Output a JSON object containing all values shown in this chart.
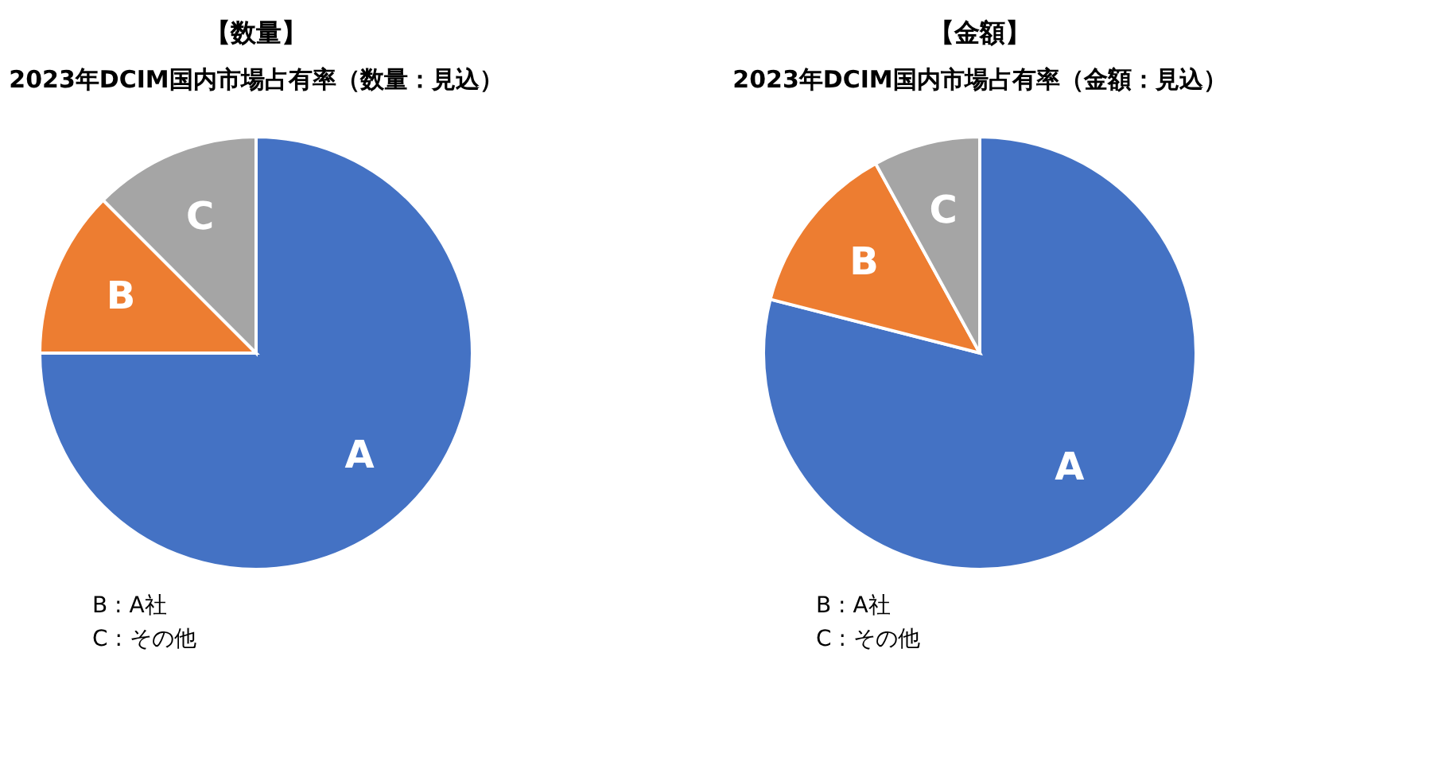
{
  "chart_data": [
    {
      "type": "pie",
      "title": "【数量】",
      "subtitle": "2023年DCIM国内市場占有率（数量：見込）",
      "categories": [
        "A",
        "B",
        "C"
      ],
      "values": [
        75,
        12.5,
        12.5
      ],
      "colors": [
        "#4472c4",
        "#ed7d31",
        "#a5a5a5"
      ],
      "annotations": [
        "B : A社",
        "C : その他"
      ]
    },
    {
      "type": "pie",
      "title": "【金額】",
      "subtitle": "2023年DCIM国内市場占有率（金額：見込）",
      "categories": [
        "A",
        "B",
        "C"
      ],
      "values": [
        79,
        13,
        8
      ],
      "colors": [
        "#4472c4",
        "#ed7d31",
        "#a5a5a5"
      ],
      "annotations": [
        "B : A社",
        "C : その他"
      ]
    }
  ]
}
